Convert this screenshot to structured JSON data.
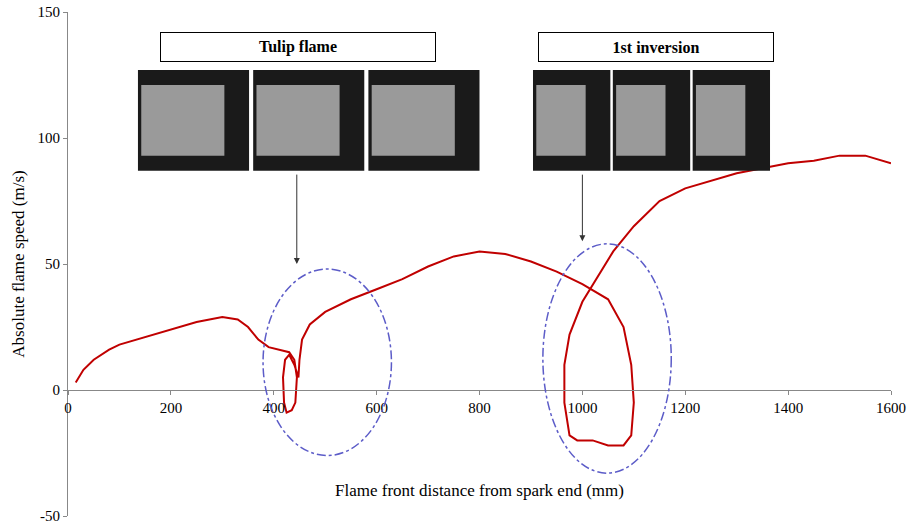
{
  "chart_data": {
    "type": "line",
    "x_label": "Flame front distance from spark end (mm)",
    "y_label": "Absolute flame speed (m/s)",
    "annotations": [
      "Tulip flame",
      "1st inversion"
    ],
    "color": "#c00000",
    "grid": false,
    "xlim": [
      0,
      1600
    ],
    "ylim": [
      -50,
      150
    ],
    "xticks": [
      0,
      200,
      400,
      600,
      800,
      1000,
      1200,
      1400,
      1600
    ],
    "yticks": [
      -50,
      0,
      50,
      100,
      150
    ],
    "x": [
      15,
      30,
      50,
      80,
      100,
      150,
      200,
      250,
      300,
      330,
      350,
      370,
      390,
      410,
      430,
      440,
      445,
      442,
      435,
      425,
      420,
      418,
      422,
      430,
      440,
      448,
      450,
      455,
      470,
      500,
      550,
      600,
      650,
      700,
      750,
      800,
      850,
      900,
      950,
      1000,
      1050,
      1080,
      1095,
      1100,
      1095,
      1080,
      1050,
      1020,
      990,
      975,
      965,
      965,
      975,
      1000,
      1030,
      1060,
      1100,
      1150,
      1200,
      1250,
      1300,
      1350,
      1400,
      1450,
      1500,
      1550,
      1600
    ],
    "values": [
      3,
      8,
      12,
      16,
      18,
      21,
      24,
      27,
      29,
      28,
      25,
      20,
      17,
      16,
      15,
      12,
      5,
      -5,
      -8,
      -9,
      -5,
      5,
      12,
      14,
      10,
      5,
      12,
      20,
      26,
      31,
      36,
      40,
      44,
      49,
      53,
      55,
      54,
      51,
      47,
      42,
      36,
      25,
      10,
      -5,
      -18,
      -22,
      -22,
      -20,
      -20,
      -18,
      -5,
      10,
      22,
      35,
      45,
      55,
      65,
      75,
      80,
      83,
      86,
      88,
      90,
      91,
      93,
      93,
      90
    ]
  }
}
